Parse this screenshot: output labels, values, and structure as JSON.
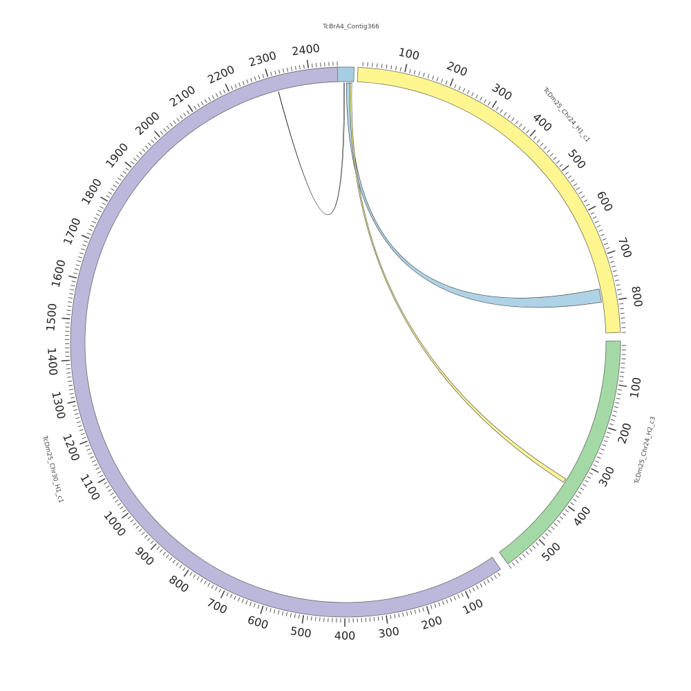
{
  "diagram": {
    "segments": [
      {
        "id": "contig366",
        "name": "TcBrA4_Contig366",
        "length": 1,
        "color": "#a6cee3"
      },
      {
        "id": "chr24h1",
        "name": "TcDm25_Chr24_H1_c1",
        "length": 870,
        "color": "#fff68f"
      },
      {
        "id": "chr24h2",
        "name": "TcDm25_Chr24_H2_c3",
        "length": 590,
        "color": "#a3d9a5"
      },
      {
        "id": "chr30h1",
        "name": "TcDm25_Chr30_H1_c1",
        "length": 2470,
        "color": "#bcb8dc"
      }
    ],
    "tick_labels": {
      "chr24h1": [
        "100",
        "200",
        "300",
        "400",
        "500",
        "600",
        "700",
        "800"
      ],
      "chr24h2": [
        "100",
        "200",
        "300",
        "400",
        "500"
      ],
      "chr30h1": [
        "100",
        "200",
        "300",
        "400",
        "500",
        "600",
        "700",
        "800",
        "900",
        "1000",
        "1100",
        "1200",
        "1300",
        "1400",
        "1500",
        "1600",
        "1700",
        "1800",
        "1900",
        "2000",
        "2100",
        "2200",
        "2300",
        "2400"
      ]
    },
    "links": [
      {
        "source": "contig366",
        "target": "chr24h1",
        "target_start": 770,
        "target_end": 800,
        "color": "#a6cee3"
      },
      {
        "source": "contig366",
        "target": "chr24h2",
        "target_start": 350,
        "target_end": 360,
        "color": "#fff68f"
      },
      {
        "source": "contig366",
        "target": "chr30h1",
        "target_start": 2315,
        "target_end": 2316,
        "color": "#ffffff"
      }
    ]
  }
}
